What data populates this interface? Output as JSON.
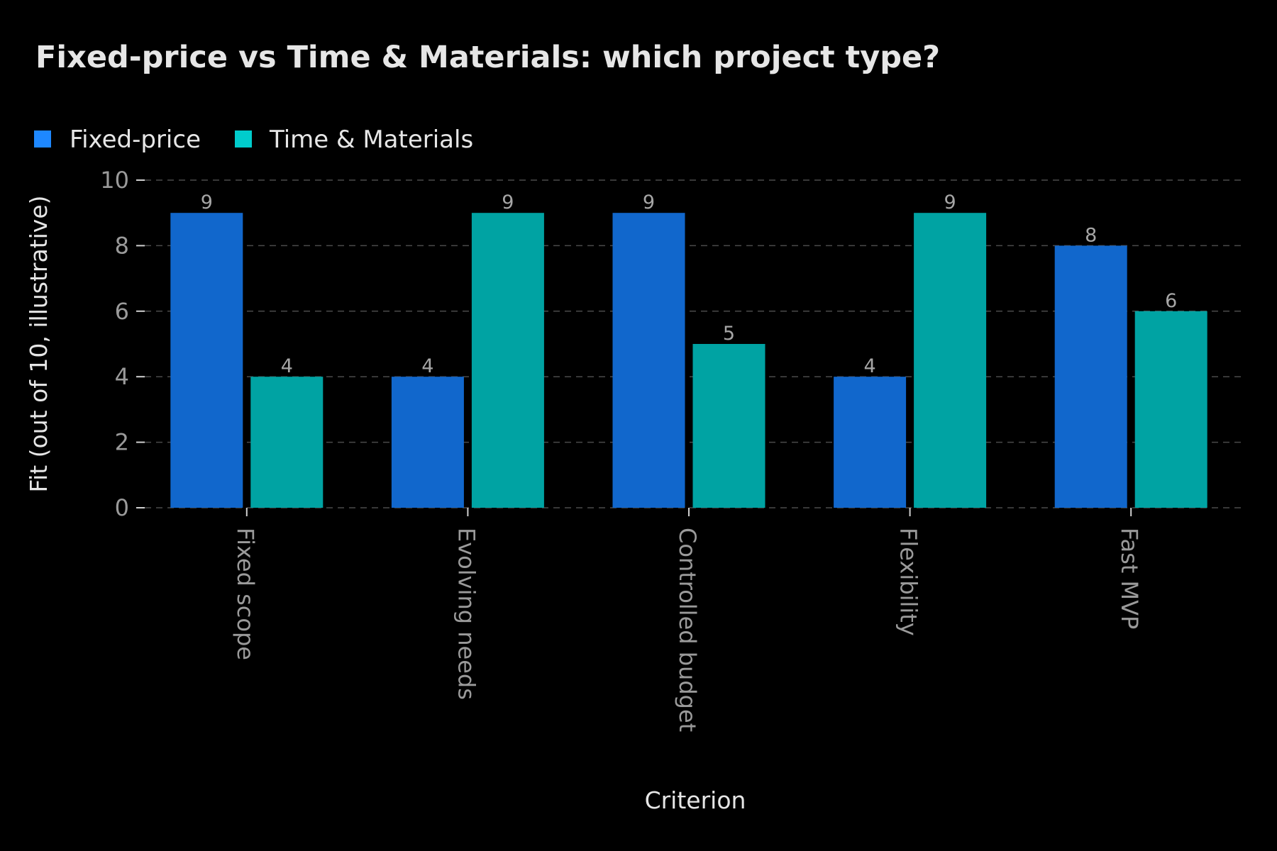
{
  "chart_data": {
    "type": "bar",
    "title": "Fixed-price vs Time & Materials: which project type?",
    "xlabel": "Criterion",
    "ylabel": "Fit (out of 10, illustrative)",
    "categories": [
      "Fixed scope",
      "Evolving needs",
      "Controlled budget",
      "Flexibility",
      "Fast MVP"
    ],
    "series": [
      {
        "name": "Fixed-price",
        "values": [
          9,
          4,
          9,
          4,
          8
        ],
        "color": "#1167cc",
        "legend_color": "#1e88ff"
      },
      {
        "name": "Time & Materials",
        "values": [
          4,
          9,
          5,
          9,
          6
        ],
        "color": "#00a3a3",
        "legend_color": "#00cccc"
      }
    ],
    "ylim": [
      0,
      10
    ],
    "yticks": [
      "0",
      "2",
      "4",
      "6",
      "8",
      "10"
    ],
    "grid": true,
    "legend_position": "top-left",
    "data_labels": true,
    "background": "#000000"
  }
}
